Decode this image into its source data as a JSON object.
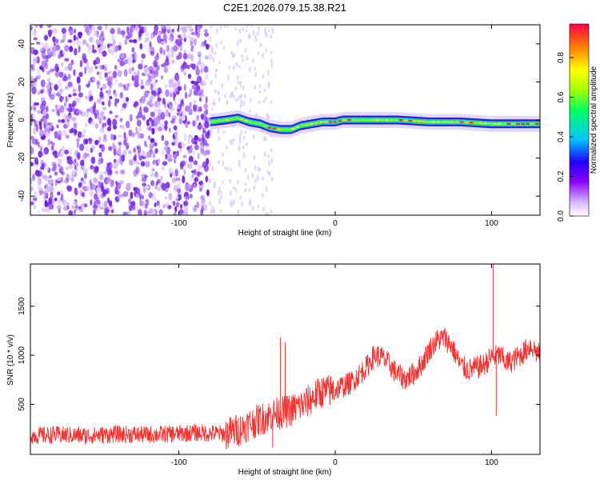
{
  "title": "C2E1.2026.079.15.38.R21",
  "chart_data": [
    {
      "type": "heatmap",
      "xlabel": "Height of straight line (km)",
      "ylabel": "Frequency (Hz)",
      "xlim": [
        -195,
        131
      ],
      "ylim": [
        -50,
        50
      ],
      "x_ticks": [
        -100,
        0,
        100
      ],
      "x_ticklabels": [
        "-100",
        "0",
        "100"
      ],
      "y_ticks": [
        -40,
        -20,
        0,
        20,
        40
      ],
      "y_ticklabels": [
        "-40",
        "-20",
        "0",
        "20",
        "40"
      ],
      "signal_track": {
        "x": [
          -80,
          -70,
          -62,
          -55,
          -48,
          -42,
          -35,
          -28,
          -22,
          -15,
          -8,
          0,
          5,
          10,
          20,
          40,
          60,
          80,
          100,
          120,
          131
        ],
        "freq": [
          -1,
          0,
          1,
          -1,
          -2,
          -4,
          -5,
          -5,
          -3,
          -2,
          -1,
          -1,
          0,
          0,
          0,
          0,
          -1,
          -1,
          -2,
          -2,
          -2
        ]
      },
      "noise_region_x": [
        -195,
        -80
      ],
      "colorbar": {
        "label": "Normalized spectral amplitude",
        "range": [
          0,
          0.97
        ],
        "ticks": [
          "0.0",
          "0.2",
          "0.4",
          "0.6",
          "0.8"
        ]
      }
    },
    {
      "type": "line",
      "xlabel": "Height of straight line (km)",
      "ylabel": "SNR (10 * v/v)",
      "xlim": [
        -195,
        131
      ],
      "ylim": [
        -10,
        1930
      ],
      "x_ticks": [
        -100,
        0,
        100
      ],
      "x_ticklabels": [
        "-100",
        "0",
        "100"
      ],
      "y_ticks": [
        500,
        1000,
        1500
      ],
      "y_ticklabels": [
        "500",
        "1000",
        "1500"
      ],
      "line_color": "#ee3333",
      "series": [
        {
          "name": "SNR",
          "x": [
            -195,
            -180,
            -160,
            -140,
            -120,
            -100,
            -90,
            -80,
            -70,
            -60,
            -55,
            -50,
            -40,
            -30,
            -20,
            -10,
            0,
            10,
            20,
            25,
            30,
            35,
            40,
            45,
            50,
            55,
            60,
            65,
            70,
            75,
            80,
            85,
            90,
            95,
            100,
            105,
            110,
            115,
            120,
            125,
            131
          ],
          "y": [
            180,
            190,
            180,
            195,
            190,
            200,
            210,
            205,
            200,
            250,
            300,
            330,
            400,
            430,
            500,
            620,
            650,
            720,
            880,
            1000,
            980,
            900,
            800,
            760,
            810,
            900,
            1050,
            1150,
            1180,
            1080,
            900,
            850,
            870,
            900,
            980,
            1000,
            920,
            960,
            1020,
            1100,
            1000
          ]
        }
      ],
      "spikes": [
        {
          "x": -35,
          "y": 1180
        },
        {
          "x": -32,
          "y": 1130
        },
        {
          "x": -40,
          "y": 60
        },
        {
          "x": 101,
          "y": 1930
        },
        {
          "x": 103,
          "y": 380
        }
      ]
    }
  ]
}
